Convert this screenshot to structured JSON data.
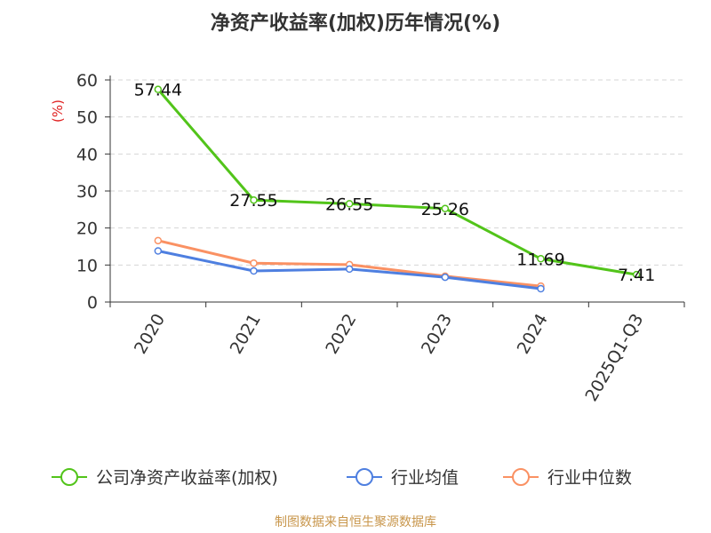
{
  "chart_data": {
    "type": "line",
    "title": "净资产收益率(加权)历年情况(%)",
    "ylabel": "(%)",
    "xlabel": "",
    "categories": [
      "2020",
      "2021",
      "2022",
      "2023",
      "2024",
      "2025Q1-Q3"
    ],
    "ylim": [
      0,
      60
    ],
    "yticks": [
      0,
      10,
      20,
      30,
      40,
      50,
      60
    ],
    "grid": true,
    "legend_position": "bottom",
    "series": [
      {
        "name": "公司净资产收益率(加权)",
        "color": "#52c41a",
        "values": [
          57.44,
          27.55,
          26.55,
          25.26,
          11.69,
          7.41
        ],
        "labels": true
      },
      {
        "name": "行业均值",
        "color": "#4e7fe0",
        "values": [
          13.8,
          8.4,
          8.9,
          6.7,
          3.6,
          null
        ],
        "labels": false
      },
      {
        "name": "行业中位数",
        "color": "#fa9163",
        "values": [
          16.6,
          10.5,
          10.1,
          7.0,
          4.3,
          null
        ],
        "labels": false
      }
    ],
    "source": "制图数据来自恒生聚源数据库"
  },
  "colors": {
    "ylabel": "#e02020",
    "source": "#c8964b",
    "grid": "#d6d6d6",
    "axis": "#333333"
  }
}
